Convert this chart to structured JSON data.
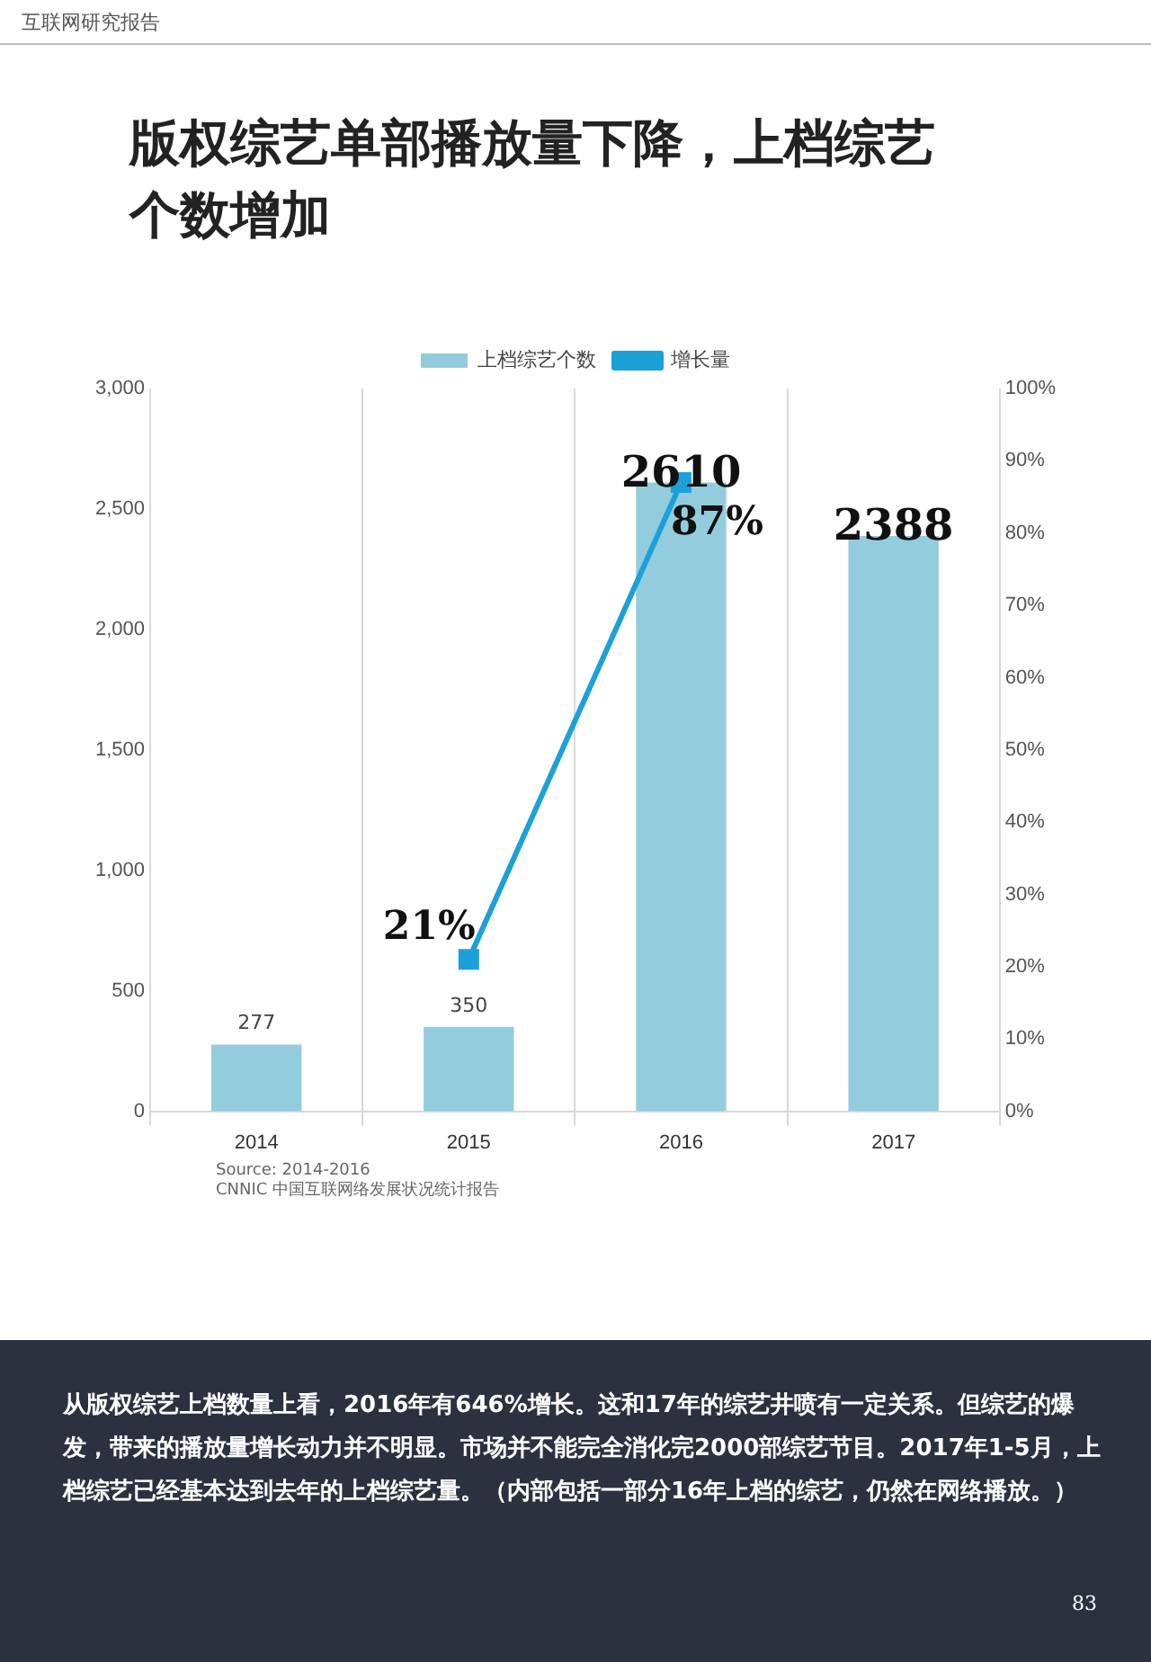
{
  "chart_data": {
    "type": "bar",
    "title": "版权综艺单部播放量下降，上档综艺个数增加",
    "categories": [
      "2014",
      "2015",
      "2016",
      "2017"
    ],
    "series": [
      {
        "name": "上档综艺个数",
        "color": "#93cddd",
        "values": [
          277,
          350,
          2610,
          2388
        ],
        "value_labels": [
          "277",
          "350",
          "2610",
          "2388"
        ]
      },
      {
        "name": "增长量",
        "type": "line",
        "axis": "y2",
        "color": "#1ba1d8",
        "values": [
          null,
          21,
          87,
          null
        ],
        "value_labels": [
          null,
          "21%",
          "87%",
          null
        ]
      }
    ],
    "ylim": [
      0,
      3000
    ],
    "yticks": [
      {
        "value": 0,
        "label": "0"
      },
      {
        "value": 500,
        "label": "500"
      },
      {
        "value": 1000,
        "label": "1,000"
      },
      {
        "value": 1500,
        "label": "1,500"
      },
      {
        "value": 2000,
        "label": "2,000"
      },
      {
        "value": 2500,
        "label": "2,500"
      },
      {
        "value": 3000,
        "label": "3,000"
      }
    ],
    "y2lim": [
      0,
      100
    ],
    "y2ticks": [
      {
        "value": 0,
        "label": "0%"
      },
      {
        "value": 10,
        "label": "10%"
      },
      {
        "value": 20,
        "label": "20%"
      },
      {
        "value": 30,
        "label": "30%"
      },
      {
        "value": 40,
        "label": "40%"
      },
      {
        "value": 50,
        "label": "50%"
      },
      {
        "value": 60,
        "label": "60%"
      },
      {
        "value": 70,
        "label": "70%"
      },
      {
        "value": 80,
        "label": "80%"
      },
      {
        "value": 90,
        "label": "90%"
      },
      {
        "value": 100,
        "label": "100%"
      }
    ],
    "grid": "x",
    "legend": "top",
    "marker": "square",
    "line_style": "solid",
    "annotations": [
      "互联网研究报告",
      "Source: 2014-2016",
      "CNNIC 中国互联网络发展状况统计报告",
      "从版权综艺上档数量上看，2016年有646%增长。这和17年的综艺井喷有一定关系。但综艺的爆发，带来的播放量增长动力并不明显。市场并不能完全消化完2000部综艺节目。2017年1-5月，上档综艺已经基本达到去年的上档综艺量。（内部包括一部分16年上档的综艺，仍然在网络播放。）",
      "83"
    ]
  }
}
